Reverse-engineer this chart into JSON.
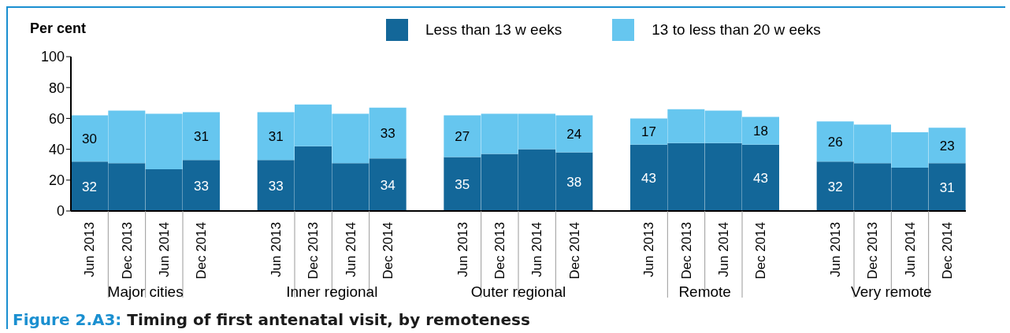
{
  "chart_data": {
    "type": "bar",
    "stacked": true,
    "title": "Figure 2.A3: Timing of first antenatal visit, by remoteness",
    "ylabel": "Per cent",
    "categories": [
      "Jun 2013",
      "Dec 2013",
      "Jun 2014",
      "Dec 2014",
      "Jun 2013",
      "Dec 2013",
      "Jun 2014",
      "Dec 2014",
      "Jun 2013",
      "Dec 2013",
      "Jun 2014",
      "Dec 2014",
      "Jun 2013",
      "Dec 2013",
      "Jun 2014",
      "Dec 2014",
      "Jun 2013",
      "Dec 2013",
      "Jun 2014",
      "Dec 2014"
    ],
    "annotations": [
      "Major cities",
      "Inner regional",
      "Outer regional",
      "Remote",
      "Very remote"
    ],
    "series": [
      {
        "name": "Less than 13 w eeks",
        "color": "#136799",
        "values": [
          32,
          31,
          27,
          33,
          33,
          42,
          31,
          34,
          35,
          37,
          40,
          38,
          43,
          44,
          44,
          43,
          32,
          31,
          28,
          31
        ],
        "value_labels": [
          "32",
          null,
          null,
          "33",
          "33",
          null,
          null,
          "34",
          "35",
          null,
          null,
          "38",
          "43",
          null,
          null,
          "43",
          "32",
          null,
          null,
          "31"
        ]
      },
      {
        "name": "13 to less than 20 w eeks",
        "color": "#66c6ef",
        "values": [
          30,
          34,
          36,
          31,
          31,
          27,
          32,
          33,
          27,
          26,
          23,
          24,
          17,
          22,
          21,
          18,
          26,
          25,
          23,
          23
        ],
        "value_labels": [
          "30",
          null,
          null,
          "31",
          "31",
          null,
          null,
          "33",
          "27",
          null,
          null,
          "24",
          "17",
          null,
          null,
          "18",
          "26",
          null,
          null,
          "23"
        ]
      }
    ],
    "ylim": [
      0,
      100
    ],
    "yticks": [
      0,
      20,
      40,
      60,
      80,
      100
    ],
    "grid": false,
    "legend": "top"
  }
}
